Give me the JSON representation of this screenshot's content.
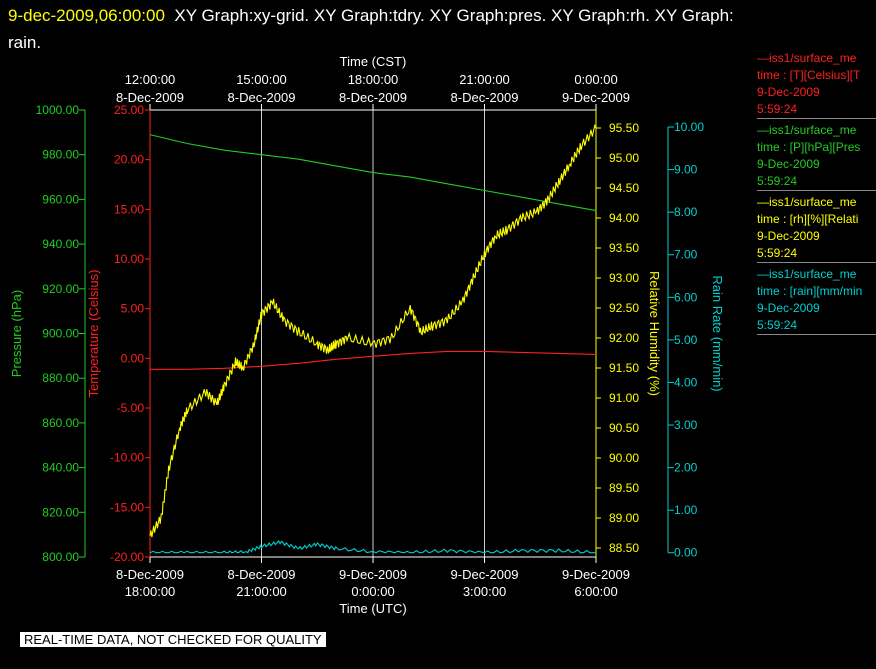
{
  "header": {
    "datetime": "9-dec-2009,06:00:00",
    "graphs": "XY Graph:xy-grid.  XY Graph:tdry.  XY Graph:pres.  XY Graph:rh.  XY Graph:",
    "graphs_cont": "rain."
  },
  "legend": [
    {
      "line": "—iss1/surface_me",
      "field": "time : [T][Celsius][T",
      "date": "9-Dec-2009",
      "time": "5:59:24",
      "color": "#ff2020"
    },
    {
      "line": "—iss1/surface_me",
      "field": "time : [P][hPa][Pres",
      "date": "9-Dec-2009",
      "time": "5:59:24",
      "color": "#22cc22"
    },
    {
      "line": "—iss1/surface_me",
      "field": "time : [rh][%][Relati",
      "date": "9-Dec-2009",
      "time": "5:59:24",
      "color": "#ffff00"
    },
    {
      "line": "—iss1/surface_me",
      "field": "time : [rain][mm/min",
      "date": "9-Dec-2009",
      "time": "5:59:24",
      "color": "#00d0d0"
    }
  ],
  "footer": "REAL-TIME DATA, NOT CHECKED FOR QUALITY",
  "colors": {
    "temperature": "#ff2020",
    "pressure": "#22cc22",
    "humidity": "#ffff00",
    "rain": "#00d0d0",
    "grid": "#ffffff",
    "text": "#ffffff"
  },
  "chart_data": {
    "type": "line",
    "xlabel_bottom": "Time (UTC)",
    "xlabel_top": "Time (CST)",
    "x_ticks_bottom": [
      [
        "8-Dec-2009",
        "18:00:00"
      ],
      [
        "8-Dec-2009",
        "21:00:00"
      ],
      [
        "9-Dec-2009",
        "0:00:00"
      ],
      [
        "9-Dec-2009",
        "3:00:00"
      ],
      [
        "9-Dec-2009",
        "6:00:00"
      ]
    ],
    "x_ticks_top": [
      [
        "12:00:00",
        "8-Dec-2009"
      ],
      [
        "15:00:00",
        "8-Dec-2009"
      ],
      [
        "18:00:00",
        "8-Dec-2009"
      ],
      [
        "21:00:00",
        "8-Dec-2009"
      ],
      [
        "0:00:00",
        "9-Dec-2009"
      ]
    ],
    "xlim_hours_utc": [
      0,
      12
    ],
    "grid": "vertical lines at tick positions",
    "axes": {
      "pressure": {
        "label": "Pressure (hPa)",
        "ylim": [
          800,
          1000
        ],
        "ticks": [
          "800.00",
          "820.00",
          "840.00",
          "860.00",
          "880.00",
          "900.00",
          "920.00",
          "940.00",
          "960.00",
          "980.00",
          "1000.00"
        ]
      },
      "temperature": {
        "label": "Temperature (Celsius)",
        "ylim": [
          -20,
          25
        ],
        "ticks": [
          "-20.00",
          "-15.00",
          "-10.00",
          "-5.00",
          "0.00",
          "5.00",
          "10.00",
          "15.00",
          "20.00",
          "25.00"
        ]
      },
      "humidity": {
        "label": "Relative Humidity (%)",
        "ylim": [
          88.35,
          95.8
        ],
        "ticks": [
          "88.50",
          "89.00",
          "89.50",
          "90.00",
          "90.50",
          "91.00",
          "91.50",
          "92.00",
          "92.50",
          "93.00",
          "93.50",
          "94.00",
          "94.50",
          "95.00",
          "95.50"
        ]
      },
      "rain": {
        "label": "Rain Rate (mm/min)",
        "ylim": [
          -0.1,
          10.4
        ],
        "ticks": [
          "0.00",
          "1.00",
          "2.00",
          "3.00",
          "4.00",
          "5.00",
          "6.00",
          "7.00",
          "8.00",
          "9.00",
          "10.00"
        ]
      }
    },
    "series": [
      {
        "axis": "temperature",
        "x": [
          0,
          1,
          2,
          3,
          4,
          5,
          6,
          7,
          8,
          9,
          10,
          11,
          12
        ],
        "y": [
          -1.1,
          -1.1,
          -1.0,
          -0.8,
          -0.5,
          -0.1,
          0.2,
          0.5,
          0.7,
          0.7,
          0.6,
          0.5,
          0.4
        ]
      },
      {
        "axis": "pressure",
        "x": [
          0,
          0.5,
          1,
          2,
          3,
          4,
          5,
          6,
          7,
          8,
          9,
          10,
          11,
          12
        ],
        "y": [
          989,
          987,
          985,
          982,
          980,
          978,
          975,
          972,
          970,
          967,
          964,
          961,
          958,
          955
        ]
      },
      {
        "axis": "humidity",
        "x": [
          0,
          0.3,
          0.5,
          0.8,
          1,
          1.5,
          1.8,
          2,
          2.3,
          2.5,
          2.8,
          3,
          3.3,
          3.6,
          4,
          4.5,
          4.8,
          5,
          5.3,
          6,
          6.5,
          7,
          7.3,
          7.6,
          8,
          8.4,
          8.7,
          9,
          9.3,
          9.6,
          10,
          10.4,
          10.7,
          11,
          11.3,
          11.6,
          12
        ],
        "y": [
          88.7,
          89.0,
          89.8,
          90.5,
          90.8,
          91.1,
          90.9,
          91.2,
          91.6,
          91.5,
          91.9,
          92.4,
          92.6,
          92.3,
          92.1,
          91.9,
          91.8,
          91.9,
          92.0,
          91.9,
          92.0,
          92.5,
          92.1,
          92.2,
          92.3,
          92.6,
          93.0,
          93.4,
          93.7,
          93.8,
          94.0,
          94.1,
          94.3,
          94.6,
          94.9,
          95.2,
          95.5
        ]
      },
      {
        "axis": "rain",
        "x": [
          0,
          1,
          2,
          2.6,
          3,
          3.5,
          4,
          4.5,
          5,
          6,
          7,
          8,
          9,
          10,
          11,
          12
        ],
        "y": [
          0,
          0,
          0,
          0.02,
          0.15,
          0.25,
          0.1,
          0.2,
          0.1,
          0.02,
          0,
          0.05,
          0,
          0.05,
          0.05,
          0
        ]
      }
    ]
  }
}
